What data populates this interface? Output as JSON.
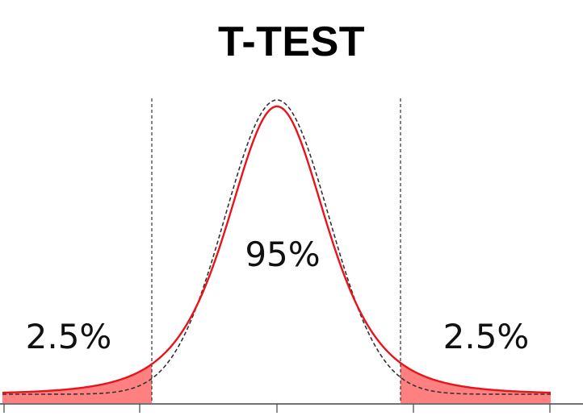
{
  "title": "T-TEST",
  "labels": {
    "center": "95%",
    "left_tail": "2.5%",
    "right_tail": "2.5%"
  },
  "colors": {
    "t_curve": "#e8141b",
    "tail_fill": "#ff8080",
    "normal_curve": "#333333",
    "critical_line": "#333333",
    "axis": "#444444"
  },
  "chart_data": {
    "type": "area",
    "curves": [
      {
        "style": "solid",
        "distribution": "t"
      },
      {
        "style": "dashed",
        "distribution": "normal"
      }
    ],
    "central_area_percent": 95,
    "tail_area_percent": [
      2.5,
      2.5
    ]
  }
}
